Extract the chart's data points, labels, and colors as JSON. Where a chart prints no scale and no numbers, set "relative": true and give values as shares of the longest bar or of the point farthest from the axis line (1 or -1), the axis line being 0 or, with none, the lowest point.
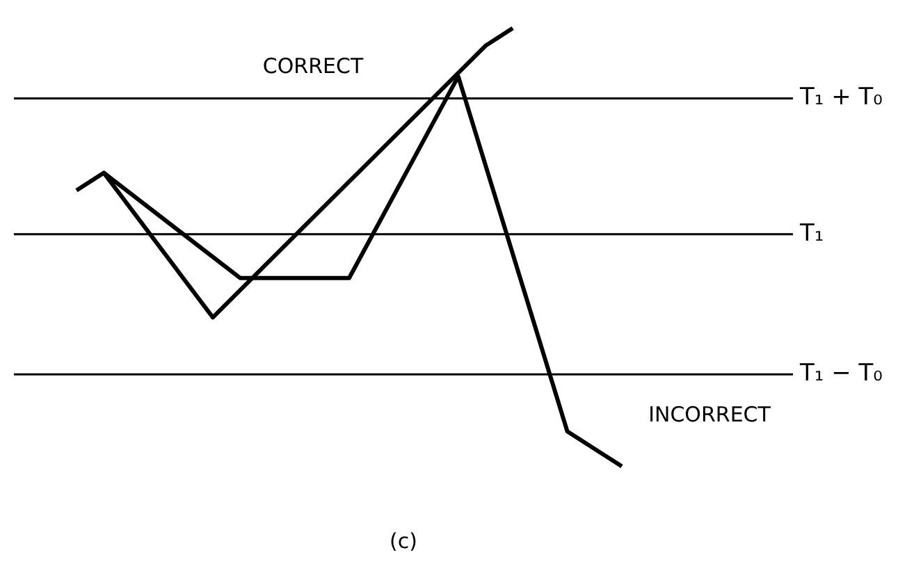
{
  "chart_data": {
    "type": "line",
    "relative": true,
    "legend": false,
    "marker": "none",
    "line_style": "solid",
    "categories": [
      null,
      null,
      null,
      null,
      null,
      null,
      null,
      null,
      null,
      null,
      null,
      null,
      null,
      null,
      null,
      null,
      null,
      null,
      null,
      null,
      null
    ],
    "series": [
      {
        "color": "#000000",
        "values": [
          0.63,
          0.67,
          null,
          null,
          null,
          0.34,
          null,
          null,
          null,
          null,
          null,
          null,
          null,
          null,
          null,
          0.96,
          1.0,
          null,
          null,
          null,
          null
        ]
      },
      {
        "color": "#000000",
        "values": [
          null,
          0.67,
          null,
          null,
          null,
          null,
          0.43,
          null,
          null,
          null,
          0.43,
          null,
          null,
          null,
          0.89,
          null,
          null,
          null,
          0.08,
          null,
          0
        ]
      }
    ],
    "ref_lines": [
      {
        "axis": "y",
        "value": 0.84,
        "label": "T₁ + T₀",
        "color": "#000000"
      },
      {
        "axis": "y",
        "value": 0.53,
        "label": "T₁",
        "color": "#000000"
      },
      {
        "axis": "y",
        "value": 0.21,
        "label": "T₁ − T₀",
        "color": "#000000"
      }
    ],
    "annotations": [
      "CORRECT",
      "INCORRECT",
      "(c)"
    ]
  }
}
